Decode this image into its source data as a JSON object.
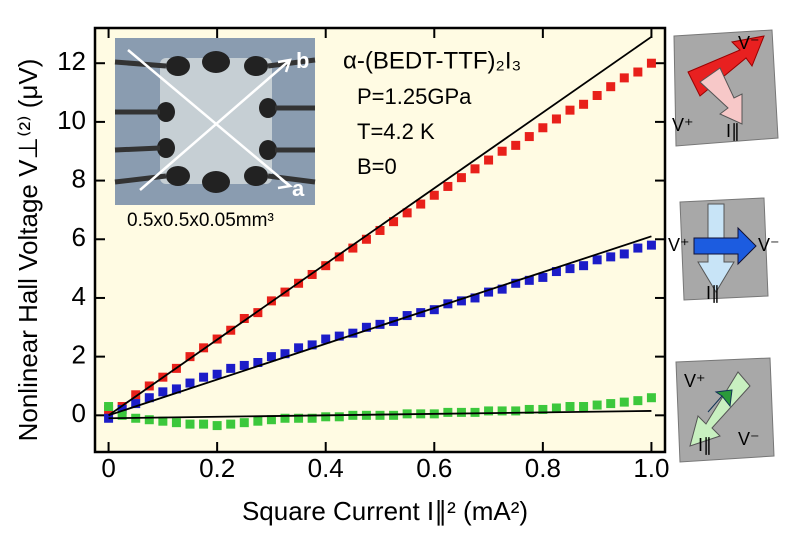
{
  "chart_data": {
    "type": "scatter",
    "x_label": "Square Current I∥² (mA²)",
    "y_label": "Nonlinear Hall Voltage V⊥⁽²⁾ (μV)",
    "xlim": [
      -0.025,
      1.025
    ],
    "ylim": [
      -1.25,
      13.2
    ],
    "xticks": [
      0,
      0.2,
      0.4,
      0.6,
      0.8,
      {
        "value": 1,
        "label": "1.0"
      }
    ],
    "yticks": [
      0,
      2,
      4,
      6,
      8,
      10,
      12
    ],
    "background": "#fffbe3",
    "x": [
      0,
      0.025,
      0.05,
      0.075,
      0.1,
      0.125,
      0.15,
      0.175,
      0.2,
      0.225,
      0.25,
      0.275,
      0.3,
      0.325,
      0.35,
      0.375,
      0.4,
      0.425,
      0.45,
      0.475,
      0.5,
      0.525,
      0.55,
      0.575,
      0.6,
      0.625,
      0.65,
      0.675,
      0.7,
      0.725,
      0.75,
      0.775,
      0.8,
      0.825,
      0.85,
      0.875,
      0.9,
      0.925,
      0.95,
      0.975,
      1.0
    ],
    "series": [
      {
        "color": "#e8201a",
        "values": [
          0.2,
          0.3,
          0.7,
          1.0,
          1.3,
          1.6,
          2.0,
          2.3,
          2.6,
          2.9,
          3.3,
          3.5,
          3.9,
          4.2,
          4.5,
          4.8,
          5.1,
          5.4,
          5.7,
          6.0,
          6.3,
          6.6,
          6.9,
          7.2,
          7.5,
          7.8,
          8.1,
          8.4,
          8.7,
          9.0,
          9.2,
          9.5,
          9.8,
          10.1,
          10.4,
          10.6,
          10.9,
          11.2,
          11.5,
          11.7,
          12.0
        ]
      },
      {
        "color": "#1c1cc8",
        "values": [
          -0.1,
          0.2,
          0.4,
          0.6,
          0.8,
          0.9,
          1.1,
          1.3,
          1.4,
          1.6,
          1.7,
          1.8,
          2.0,
          2.1,
          2.3,
          2.4,
          2.6,
          2.7,
          2.8,
          3.0,
          3.1,
          3.2,
          3.4,
          3.5,
          3.6,
          3.8,
          3.9,
          4.0,
          4.2,
          4.3,
          4.5,
          4.6,
          4.7,
          4.9,
          5.0,
          5.1,
          5.3,
          5.4,
          5.5,
          5.7,
          5.8
        ]
      },
      {
        "color": "#3cc83c",
        "values": [
          0.3,
          0.0,
          -0.1,
          -0.15,
          -0.2,
          -0.25,
          -0.3,
          -0.3,
          -0.35,
          -0.3,
          -0.25,
          -0.2,
          -0.15,
          -0.1,
          -0.1,
          -0.1,
          -0.05,
          -0.05,
          0.0,
          0.0,
          0.0,
          0.0,
          0.05,
          0.05,
          0.05,
          0.1,
          0.1,
          0.1,
          0.15,
          0.15,
          0.15,
          0.2,
          0.2,
          0.25,
          0.3,
          0.3,
          0.35,
          0.4,
          0.45,
          0.5,
          0.6
        ]
      }
    ],
    "fit_lines": [
      {
        "color": "#000000",
        "x": [
          0,
          1
        ],
        "values": [
          0,
          12.9
        ]
      },
      {
        "color": "#000000",
        "x": [
          0,
          1
        ],
        "values": [
          0,
          6.1
        ]
      },
      {
        "color": "#000000",
        "x": [
          0,
          1
        ],
        "values": [
          -0.1,
          0.15
        ]
      }
    ],
    "annotations": {
      "formula": "α-(BEDT-TTF)₂I₃",
      "pressure": "P=1.25GPa",
      "temperature": "T=4.2 K",
      "field": "B=0",
      "size": "0.5x0.5x0.05mm³",
      "axis_a": "a",
      "axis_b": "b"
    },
    "icons": [
      {
        "v_plus": "V⁺",
        "v_minus": "V⁻",
        "current": "I∥"
      },
      {
        "v_plus": "V⁺",
        "v_minus": "V⁻",
        "current": "I∥"
      },
      {
        "v_plus": "V⁺",
        "v_minus": "V⁻",
        "current": "I∥"
      }
    ]
  }
}
